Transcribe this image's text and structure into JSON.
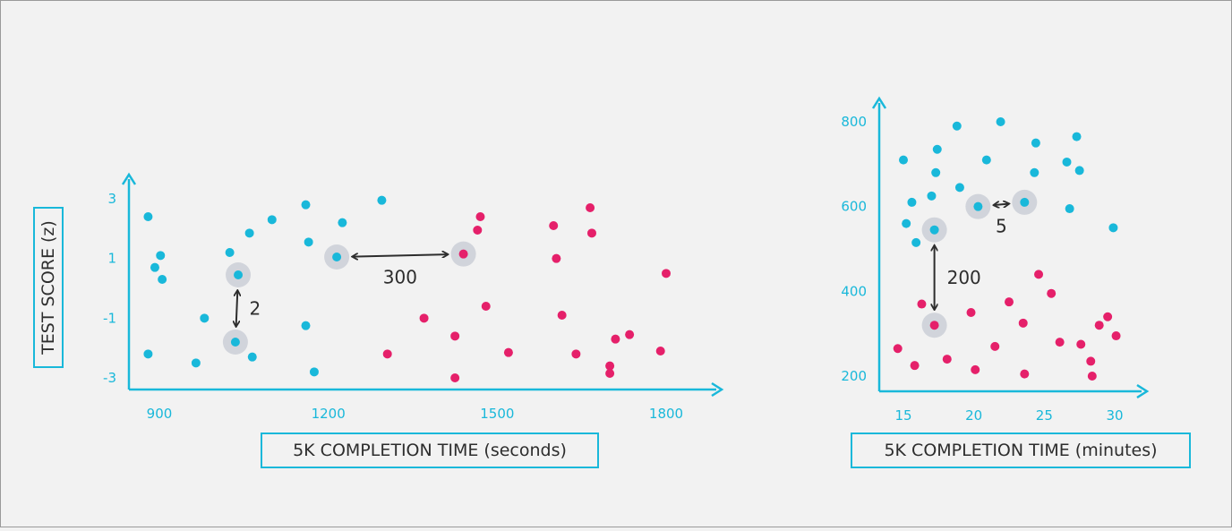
{
  "colors": {
    "axis": "#19b8da",
    "blue_point": "#19b8da",
    "red_point": "#e5206a",
    "highlight_ring": "#c6c9d3",
    "text": "#2d2d2d"
  },
  "chart_data": [
    {
      "type": "scatter",
      "xlabel": "5K COMPLETION TIME (seconds)",
      "ylabel": "TEST SCORE (z)",
      "xticks": [
        900,
        1200,
        1500,
        1800
      ],
      "yticks": [
        3,
        1,
        -1,
        -3
      ],
      "xlim": [
        850,
        1900
      ],
      "ylim": [
        -3.3,
        3.8
      ],
      "grid": false,
      "series": [
        {
          "color": "blue",
          "points": [
            [
              880,
              2.4
            ],
            [
              892,
              0.7
            ],
            [
              902,
              1.1
            ],
            [
              905,
              0.3
            ],
            [
              880,
              -2.2
            ],
            [
              965,
              -2.5
            ],
            [
              980,
              -1.0
            ],
            [
              1025,
              1.2
            ],
            [
              1040,
              0.45
            ],
            [
              1035,
              -1.8
            ],
            [
              1065,
              -2.3
            ],
            [
              1060,
              1.85
            ],
            [
              1100,
              2.3
            ],
            [
              1160,
              2.8
            ],
            [
              1165,
              1.55
            ],
            [
              1160,
              -1.25
            ],
            [
              1175,
              -2.8
            ],
            [
              1215,
              1.05
            ],
            [
              1225,
              2.2
            ],
            [
              1295,
              2.95
            ]
          ]
        },
        {
          "color": "red",
          "points": [
            [
              1305,
              -2.2
            ],
            [
              1370,
              -1.0
            ],
            [
              1425,
              -1.6
            ],
            [
              1425,
              -3.0
            ],
            [
              1440,
              1.15
            ],
            [
              1465,
              1.95
            ],
            [
              1470,
              2.4
            ],
            [
              1480,
              -0.6
            ],
            [
              1520,
              -2.15
            ],
            [
              1600,
              2.1
            ],
            [
              1605,
              1.0
            ],
            [
              1615,
              -0.9
            ],
            [
              1640,
              -2.2
            ],
            [
              1665,
              2.7
            ],
            [
              1668,
              1.85
            ],
            [
              1700,
              -2.6
            ],
            [
              1700,
              -2.85
            ],
            [
              1710,
              -1.7
            ],
            [
              1735,
              -1.55
            ],
            [
              1790,
              -2.1
            ],
            [
              1800,
              0.5
            ]
          ]
        }
      ],
      "highlighted": [
        [
          1040,
          0.45
        ],
        [
          1035,
          -1.8
        ],
        [
          1215,
          1.05
        ],
        [
          1440,
          1.15
        ]
      ],
      "annotations": [
        {
          "text": "2",
          "from": [
            1040,
            0.45
          ],
          "to": [
            1035,
            -1.8
          ]
        },
        {
          "text": "300",
          "from": [
            1215,
            1.05
          ],
          "to": [
            1440,
            1.15
          ]
        }
      ]
    },
    {
      "type": "scatter",
      "xlabel": "5K COMPLETION TIME (minutes)",
      "ylabel": "",
      "xticks": [
        15,
        20,
        25,
        30
      ],
      "yticks": [
        800,
        600,
        400,
        200
      ],
      "xlim": [
        14,
        33
      ],
      "ylim": [
        180,
        880
      ],
      "grid": false,
      "series": [
        {
          "color": "blue",
          "points": [
            [
              15,
              710
            ],
            [
              15.2,
              560
            ],
            [
              15.6,
              610
            ],
            [
              15.9,
              515
            ],
            [
              17,
              625
            ],
            [
              17.3,
              680
            ],
            [
              17.4,
              735
            ],
            [
              17.2,
              545
            ],
            [
              18.8,
              790
            ],
            [
              19,
              645
            ],
            [
              20.3,
              600
            ],
            [
              20.9,
              710
            ],
            [
              21.9,
              800
            ],
            [
              23.6,
              610
            ],
            [
              24.3,
              680
            ],
            [
              24.4,
              750
            ],
            [
              26.6,
              705
            ],
            [
              26.8,
              595
            ],
            [
              27.3,
              765
            ],
            [
              27.5,
              685
            ],
            [
              29.9,
              550
            ]
          ]
        },
        {
          "color": "red",
          "points": [
            [
              14.6,
              265
            ],
            [
              15.8,
              225
            ],
            [
              16.3,
              370
            ],
            [
              17.2,
              320
            ],
            [
              18.1,
              240
            ],
            [
              19.8,
              350
            ],
            [
              20.1,
              215
            ],
            [
              21.5,
              270
            ],
            [
              22.5,
              375
            ],
            [
              23.5,
              325
            ],
            [
              23.6,
              205
            ],
            [
              24.6,
              440
            ],
            [
              25.5,
              395
            ],
            [
              26.1,
              280
            ],
            [
              27.6,
              275
            ],
            [
              28.3,
              235
            ],
            [
              28.4,
              200
            ],
            [
              28.9,
              320
            ],
            [
              29.5,
              340
            ],
            [
              30.1,
              295
            ]
          ]
        }
      ],
      "highlighted": [
        [
          17.2,
          545
        ],
        [
          17.2,
          320
        ],
        [
          20.3,
          600
        ],
        [
          23.6,
          610
        ]
      ],
      "annotations": [
        {
          "text": "200",
          "from": [
            17.2,
            545
          ],
          "to": [
            17.2,
            320
          ]
        },
        {
          "text": "5",
          "from": [
            20.3,
            600
          ],
          "to": [
            23.6,
            610
          ]
        }
      ]
    }
  ]
}
